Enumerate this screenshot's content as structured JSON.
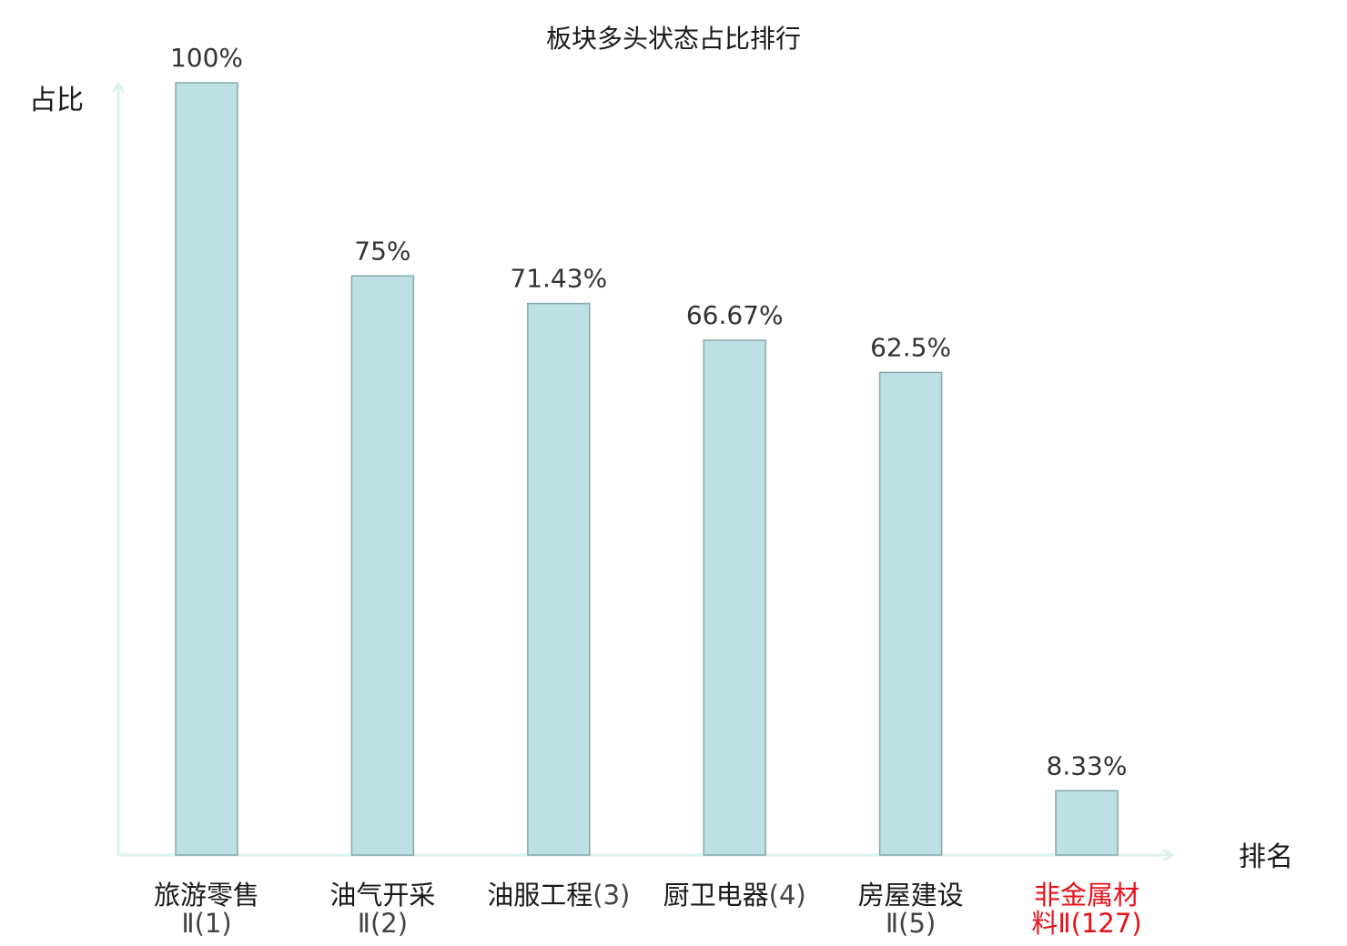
{
  "chart_data": {
    "type": "bar",
    "title": "板块多头状态占比排行",
    "ylabel": "占比",
    "xlabel": "排名",
    "ylim": [
      0,
      100
    ],
    "grid": false,
    "categories": [
      {
        "name": "旅游零售",
        "rank": "Ⅱ(1)"
      },
      {
        "name": "油气开采",
        "rank": "Ⅱ(2)"
      },
      {
        "name": "油服工程",
        "rank": "(3)"
      },
      {
        "name": "厨卫电器",
        "rank": "(4)"
      },
      {
        "name": "房屋建设",
        "rank": "Ⅱ(5)"
      },
      {
        "name": "非金属材",
        "name2": "料",
        "rank": "Ⅱ(127)"
      }
    ],
    "values": [
      100,
      75,
      71.43,
      66.67,
      62.5,
      8.33
    ],
    "value_labels": [
      "100%",
      "75%",
      "71.43%",
      "66.67%",
      "62.5%",
      "8.33%"
    ],
    "highlight_index": 5
  },
  "colors": {
    "bar_fill": "#bce0e3",
    "bar_stroke": "#88a9ac",
    "axis": "#ddf1ee",
    "highlight": "#e8111a"
  }
}
